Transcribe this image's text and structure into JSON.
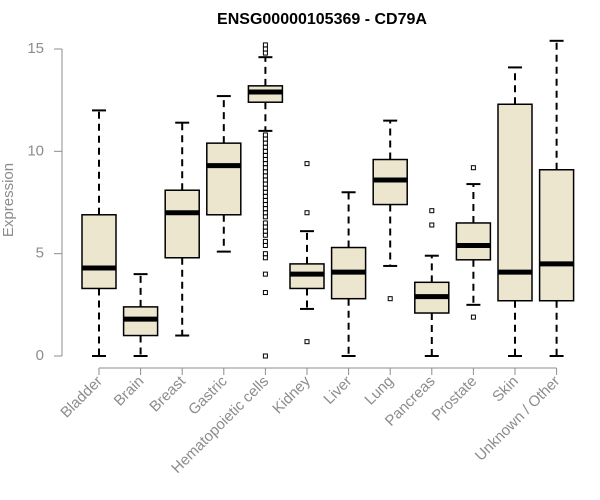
{
  "chart_data": {
    "type": "boxplot",
    "title": "ENSG00000105369 - CD79A",
    "ylabel": "Expression",
    "xlabel": "",
    "ylim": [
      0,
      15.5
    ],
    "yticks": [
      0,
      5,
      10,
      15
    ],
    "grid": false,
    "legend": "none",
    "box_fill": "#ede6ce",
    "categories": [
      "Bladder",
      "Brain",
      "Breast",
      "Gastric",
      "Hematopoietic cells",
      "Kidney",
      "Liver",
      "Lung",
      "Pancreas",
      "Prostate",
      "Skin",
      "Unknown / Other"
    ],
    "boxes": [
      {
        "whisker_low": 0,
        "q1": 3.3,
        "median": 4.3,
        "q3": 6.9,
        "whisker_high": 12.0,
        "outliers": []
      },
      {
        "whisker_low": 0,
        "q1": 1.0,
        "median": 1.8,
        "q3": 2.4,
        "whisker_high": 4.0,
        "outliers": []
      },
      {
        "whisker_low": 1.0,
        "q1": 4.8,
        "median": 7.0,
        "q3": 8.1,
        "whisker_high": 11.4,
        "outliers": []
      },
      {
        "whisker_low": 5.1,
        "q1": 6.9,
        "median": 9.3,
        "q3": 10.4,
        "whisker_high": 12.7,
        "outliers": []
      },
      {
        "whisker_low": 11.0,
        "q1": 12.4,
        "median": 12.9,
        "q3": 13.2,
        "whisker_high": 14.6,
        "outliers": [
          0,
          3.1,
          4.0,
          4.8,
          5.0,
          5.4,
          5.6,
          5.9,
          6.1,
          6.3,
          6.5,
          6.8,
          7.0,
          7.2,
          7.4,
          7.6,
          7.8,
          8.0,
          8.2,
          8.4,
          8.6,
          8.8,
          9.0,
          9.2,
          9.4,
          9.6,
          9.8,
          10.0,
          10.2,
          10.4,
          10.6,
          10.8,
          14.8,
          15.0,
          15.2
        ]
      },
      {
        "whisker_low": 2.3,
        "q1": 3.3,
        "median": 4.0,
        "q3": 4.5,
        "whisker_high": 6.1,
        "outliers": [
          0.7,
          7.0,
          9.4
        ]
      },
      {
        "whisker_low": 0,
        "q1": 2.8,
        "median": 4.1,
        "q3": 5.3,
        "whisker_high": 8.0,
        "outliers": []
      },
      {
        "whisker_low": 4.4,
        "q1": 7.4,
        "median": 8.6,
        "q3": 9.6,
        "whisker_high": 11.5,
        "outliers": [
          2.8
        ]
      },
      {
        "whisker_low": 0,
        "q1": 2.1,
        "median": 2.9,
        "q3": 3.6,
        "whisker_high": 4.9,
        "outliers": [
          6.4,
          7.1
        ]
      },
      {
        "whisker_low": 2.5,
        "q1": 4.7,
        "median": 5.4,
        "q3": 6.5,
        "whisker_high": 8.4,
        "outliers": [
          1.9,
          9.2
        ]
      },
      {
        "whisker_low": 0,
        "q1": 2.7,
        "median": 4.1,
        "q3": 12.3,
        "whisker_high": 14.1,
        "outliers": []
      },
      {
        "whisker_low": 0,
        "q1": 2.7,
        "median": 4.5,
        "q3": 9.1,
        "whisker_high": 15.4,
        "outliers": []
      }
    ]
  }
}
